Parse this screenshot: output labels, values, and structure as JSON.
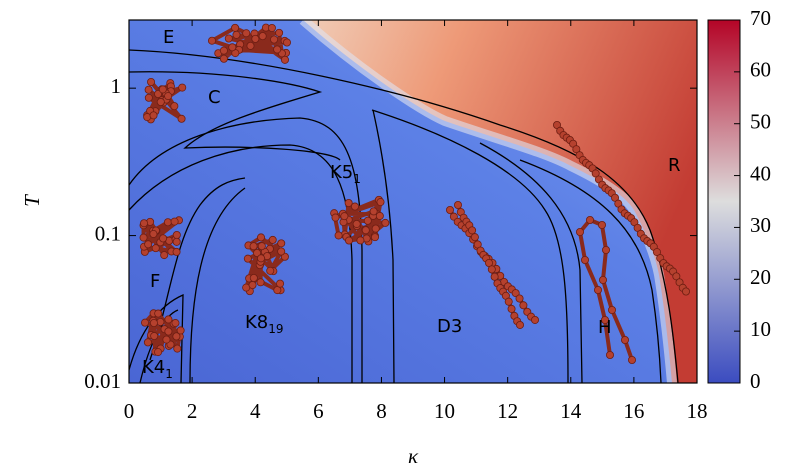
{
  "chart_data": {
    "type": "heatmap",
    "xlabel": "κ",
    "ylabel": "T",
    "xlim": [
      0,
      18
    ],
    "xticks": [
      0,
      2,
      4,
      6,
      8,
      10,
      12,
      14,
      16,
      18
    ],
    "ylim": [
      0.01,
      2.9
    ],
    "yticks": [
      0.01,
      0.1,
      1
    ],
    "yscale": "log",
    "colorbar": {
      "lim": [
        0,
        70
      ],
      "ticks": [
        0,
        10,
        20,
        30,
        40,
        50,
        60,
        70
      ],
      "colors": [
        "#3b4cc0",
        "#dddddd",
        "#b40426"
      ]
    },
    "annotations": [
      {
        "text": "E"
      },
      {
        "text": "C"
      },
      {
        "text": "K5",
        "subscript": "1"
      },
      {
        "text": "R"
      },
      {
        "text": "F"
      },
      {
        "text": "D3"
      },
      {
        "text": "H"
      },
      {
        "text": "K8",
        "subscript": "19"
      },
      {
        "text": "K4",
        "subscript": "1"
      }
    ]
  }
}
